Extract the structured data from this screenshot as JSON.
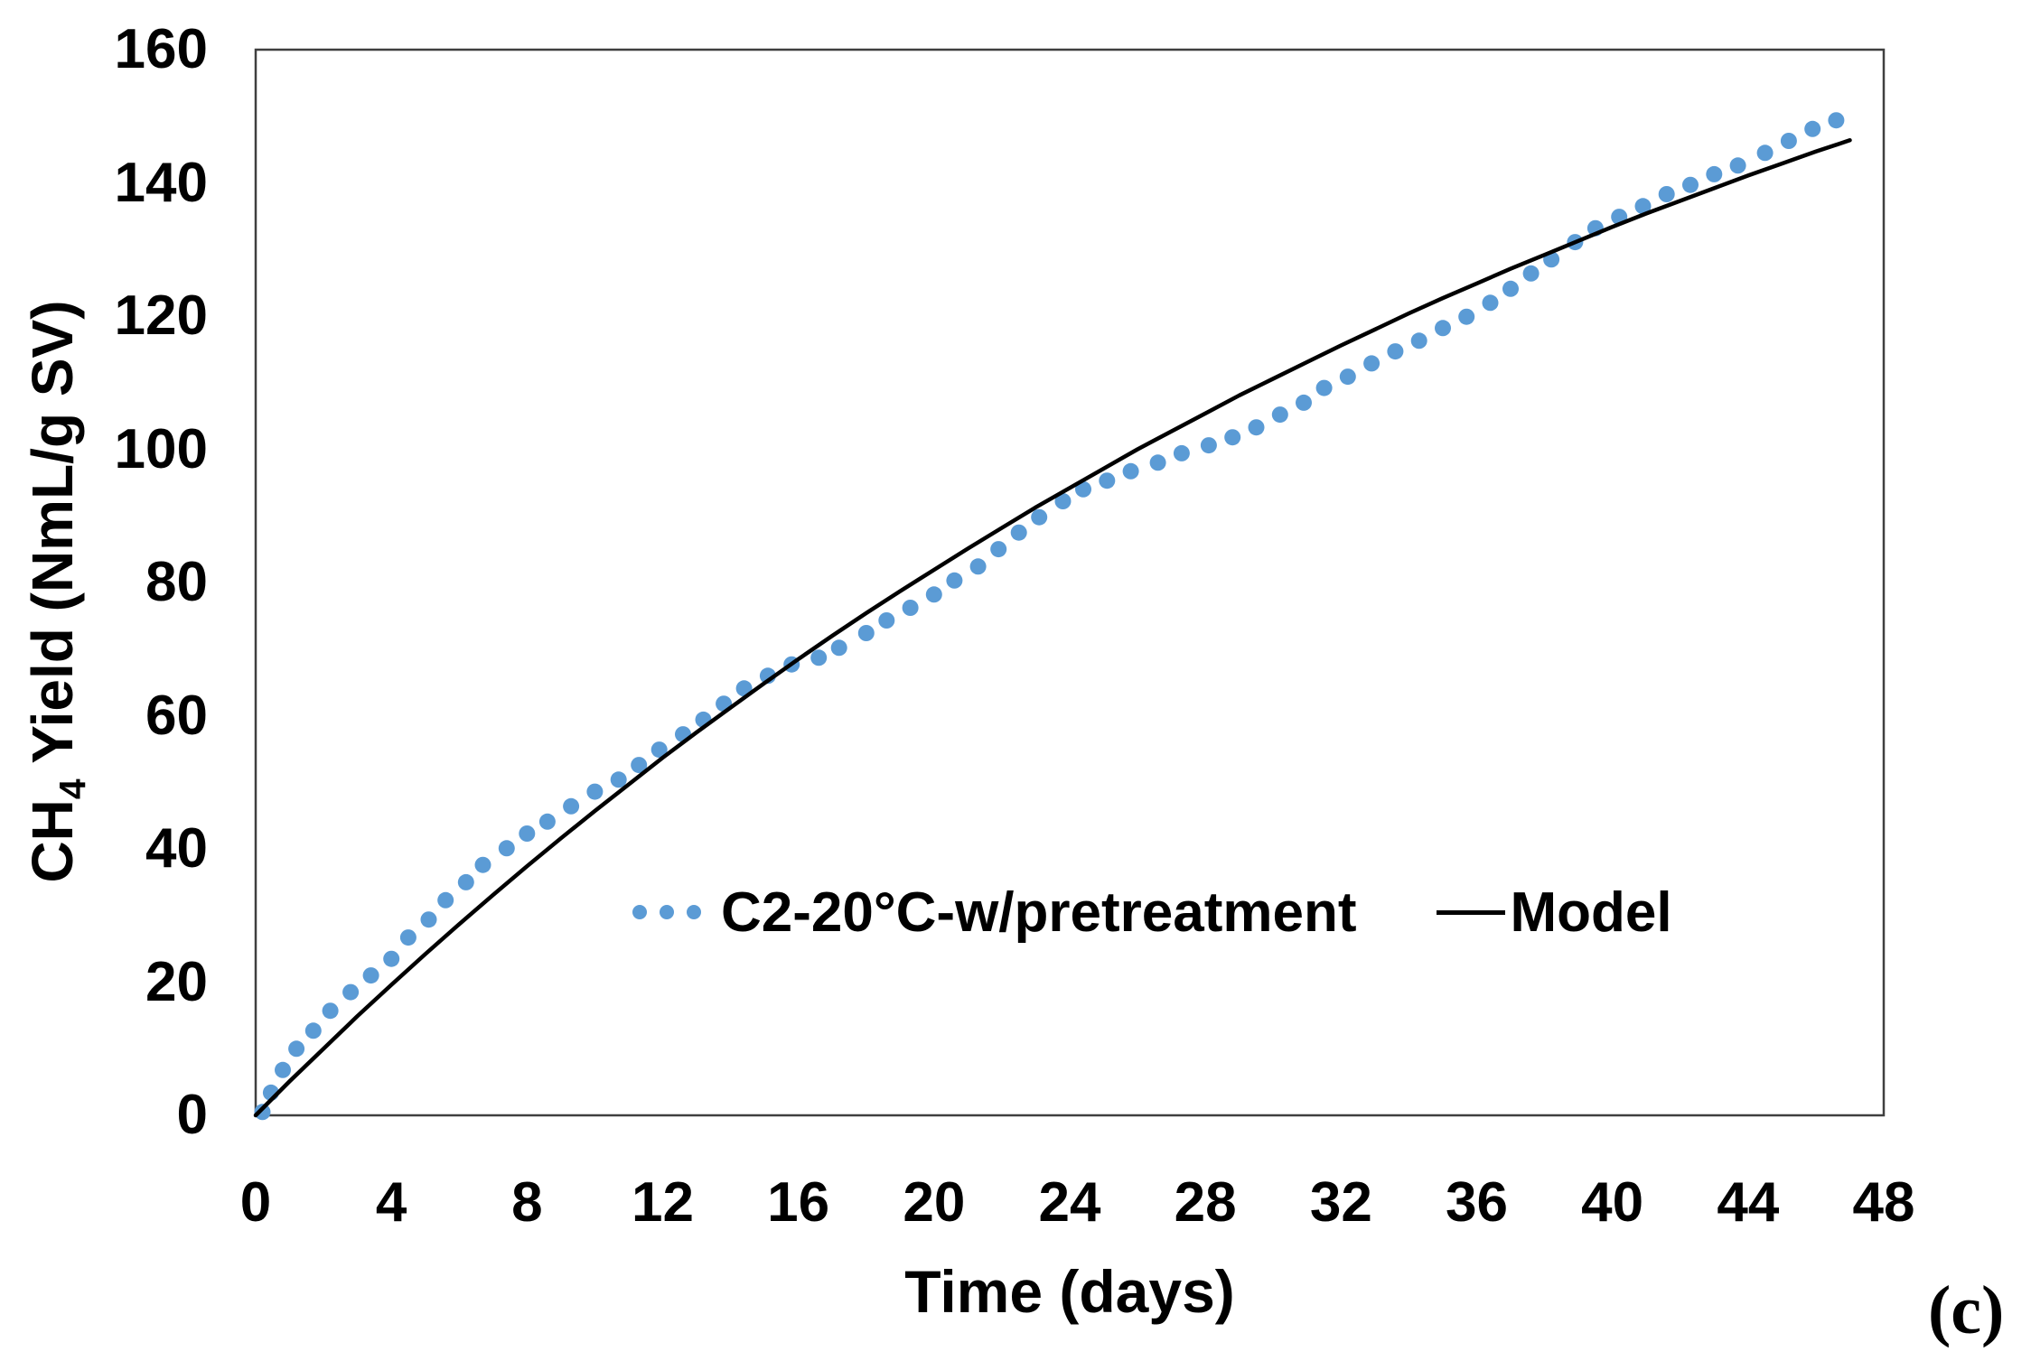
{
  "figure": {
    "panel_label": "(c)"
  },
  "chart_data": {
    "type": "scatter",
    "title": "",
    "xlabel": "Time (days)",
    "ylabel": {
      "prefix": "CH",
      "sub": "4",
      "suffix": "  Yield (NmL/g SV)"
    },
    "xlim": [
      0,
      48
    ],
    "ylim": [
      0,
      160
    ],
    "x_ticks": [
      0,
      4,
      8,
      12,
      16,
      20,
      24,
      28,
      32,
      36,
      40,
      44,
      48
    ],
    "y_ticks": [
      0,
      20,
      40,
      60,
      80,
      100,
      120,
      140,
      160
    ],
    "grid": false,
    "legend_position": "inside lower-center",
    "frame_color": "#3f3f3f",
    "series": [
      {
        "name": "C2-20°C-w/pretreatment",
        "type": "scatter",
        "marker": "circle",
        "color": "#5B9BD5",
        "x": [
          0.2,
          0.45,
          0.8,
          1.2,
          1.7,
          2.2,
          2.8,
          3.4,
          4.0,
          4.5,
          5.1,
          5.6,
          6.2,
          6.7,
          7.4,
          8.0,
          8.6,
          9.3,
          10.0,
          10.7,
          11.3,
          11.9,
          12.6,
          13.2,
          13.8,
          14.4,
          15.1,
          15.8,
          16.6,
          17.2,
          18.0,
          18.6,
          19.3,
          20.0,
          20.6,
          21.3,
          21.9,
          22.5,
          23.1,
          23.8,
          24.4,
          25.1,
          25.8,
          26.6,
          27.3,
          28.1,
          28.8,
          29.5,
          30.2,
          30.9,
          31.5,
          32.2,
          32.9,
          33.6,
          34.3,
          35.0,
          35.7,
          36.4,
          37.0,
          37.6,
          38.2,
          38.9,
          39.5,
          40.2,
          40.9,
          41.6,
          42.3,
          43.0,
          43.7,
          44.5,
          45.2,
          45.9,
          46.6
        ],
        "y": [
          0.5,
          3.4,
          6.8,
          10.0,
          12.7,
          15.7,
          18.5,
          21.0,
          23.5,
          26.7,
          29.4,
          32.3,
          35.0,
          37.6,
          40.1,
          42.3,
          44.1,
          46.4,
          48.6,
          50.4,
          52.6,
          54.9,
          57.2,
          59.4,
          61.8,
          64.1,
          66.0,
          67.7,
          68.7,
          70.2,
          72.4,
          74.3,
          76.2,
          78.2,
          80.3,
          82.4,
          85.0,
          87.5,
          89.8,
          92.2,
          94.0,
          95.3,
          96.7,
          98.0,
          99.4,
          100.6,
          101.8,
          103.3,
          105.2,
          107.0,
          109.2,
          110.9,
          112.9,
          114.7,
          116.3,
          118.2,
          119.9,
          122.0,
          124.1,
          126.4,
          128.5,
          131.1,
          133.2,
          134.9,
          136.5,
          138.3,
          139.7,
          141.3,
          142.6,
          144.5,
          146.3,
          148.1,
          149.4
        ]
      },
      {
        "name": "Model",
        "type": "line",
        "color": "#000000",
        "x": [
          0,
          1,
          2,
          3,
          4,
          5,
          6,
          7,
          8,
          9,
          10,
          11,
          12,
          13,
          14,
          15,
          16,
          17,
          18,
          19,
          20,
          21,
          22,
          23,
          24,
          25,
          26,
          27,
          28,
          29,
          30,
          31,
          32,
          33,
          34,
          35,
          36,
          37,
          38,
          39,
          40,
          41,
          42,
          43,
          44,
          45,
          46,
          47
        ],
        "y": [
          0,
          5.1,
          10.0,
          14.9,
          19.6,
          24.2,
          28.7,
          33.1,
          37.4,
          41.6,
          45.7,
          49.7,
          53.7,
          57.5,
          61.2,
          64.9,
          68.5,
          72.0,
          75.4,
          78.7,
          81.9,
          85.1,
          88.2,
          91.3,
          94.2,
          97.1,
          100.0,
          102.7,
          105.4,
          108.1,
          110.6,
          113.1,
          115.6,
          118.0,
          120.4,
          122.7,
          124.9,
          127.1,
          129.2,
          131.3,
          133.4,
          135.4,
          137.3,
          139.2,
          141.1,
          142.9,
          144.7,
          146.4
        ]
      }
    ]
  }
}
